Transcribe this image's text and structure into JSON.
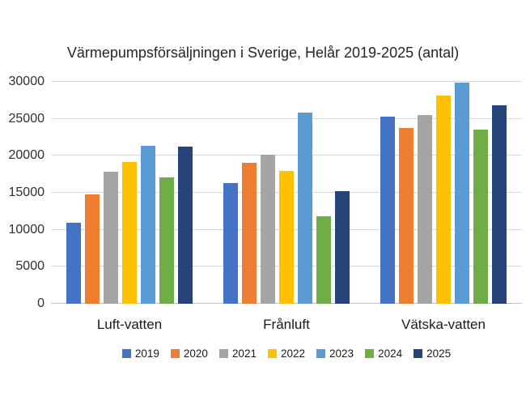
{
  "chart_data": {
    "type": "bar",
    "title": "Värmepumpsförsäljningen i Sverige, Helår 2019-2025 (antal)",
    "categories": [
      "Luft-vatten",
      "Frånluft",
      "Vätska-vatten"
    ],
    "series": [
      {
        "name": "2019",
        "color": "#4472C4",
        "values": [
          11000,
          16300,
          25300
        ]
      },
      {
        "name": "2020",
        "color": "#ED7D31",
        "values": [
          14800,
          19000,
          23800
        ]
      },
      {
        "name": "2021",
        "color": "#A5A5A5",
        "values": [
          17900,
          20200,
          25500
        ]
      },
      {
        "name": "2022",
        "color": "#FFC000",
        "values": [
          19200,
          18000,
          28100
        ]
      },
      {
        "name": "2023",
        "color": "#5B9BD5",
        "values": [
          21300,
          25800,
          29900
        ]
      },
      {
        "name": "2024",
        "color": "#70AD47",
        "values": [
          17100,
          11800,
          23500
        ]
      },
      {
        "name": "2025",
        "color": "#264478",
        "values": [
          21200,
          15200,
          26800
        ]
      }
    ],
    "ylim": [
      0,
      30000
    ],
    "ytick_interval": 5000,
    "yticks": [
      "0",
      "5000",
      "10000",
      "15000",
      "20000",
      "25000",
      "30000"
    ],
    "grid": true,
    "legend_position": "bottom",
    "background_color": "#FFFFFF",
    "gridline_color": "#D9D9D9"
  }
}
